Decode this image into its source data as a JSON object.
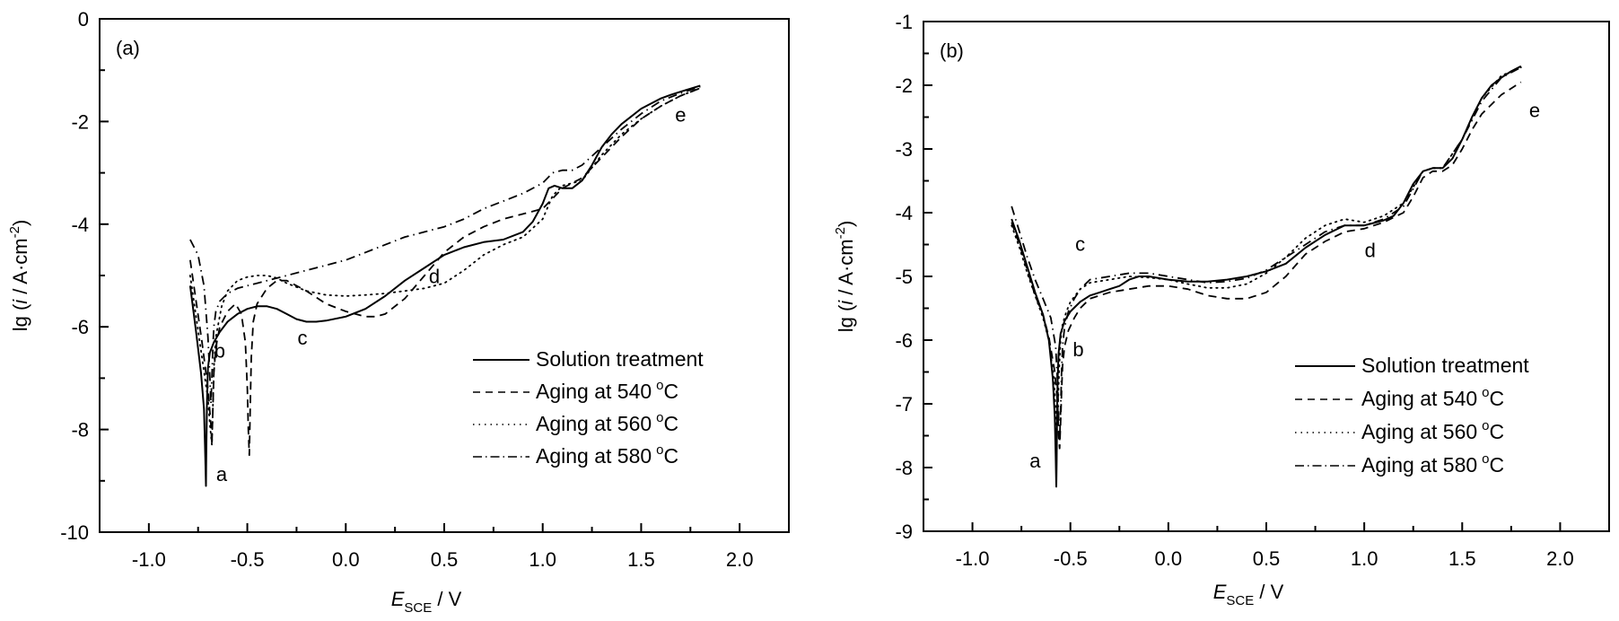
{
  "chart_data": [
    {
      "type": "line",
      "panel_label": "(a)",
      "xlabel": "E",
      "xlabel_sub": "SCE",
      "xlabel_unit": " / V",
      "ylabel": "lg (i / A·cm-2)",
      "ylabel_parts": {
        "pre": "lg (",
        "italic": "i",
        "mid": " / A·cm",
        "sup": "-2",
        "post": ")"
      },
      "xlim": [
        -1.25,
        2.25
      ],
      "ylim": [
        -10,
        0
      ],
      "xticks": [
        -1.0,
        -0.5,
        0.0,
        0.5,
        1.0,
        1.5,
        2.0
      ],
      "xtick_labels": [
        "-1.0",
        "-0.5",
        "0.0",
        "0.5",
        "1.0",
        "1.5",
        "2.0"
      ],
      "yticks": [
        0,
        -2,
        -4,
        -6,
        -8,
        -10
      ],
      "ytick_labels": [
        "0",
        "-2",
        "-4",
        "-6",
        "-8",
        "-10"
      ],
      "legend_position": "bottom-right",
      "grid": false,
      "annotations": [
        {
          "text": "a",
          "x": -0.63,
          "y": -9.0
        },
        {
          "text": "b",
          "x": -0.64,
          "y": -6.6
        },
        {
          "text": "c",
          "x": -0.22,
          "y": -6.35
        },
        {
          "text": "d",
          "x": 0.45,
          "y": -5.15
        },
        {
          "text": "e",
          "x": 1.7,
          "y": -2.0
        }
      ],
      "series": [
        {
          "name": "Solution treatment",
          "style": "solid",
          "x": [
            -0.79,
            -0.76,
            -0.735,
            -0.72,
            -0.715,
            -0.712,
            -0.71,
            -0.708,
            -0.705,
            -0.7,
            -0.69,
            -0.67,
            -0.64,
            -0.6,
            -0.55,
            -0.5,
            -0.45,
            -0.4,
            -0.35,
            -0.3,
            -0.25,
            -0.2,
            -0.15,
            -0.1,
            0.0,
            0.1,
            0.2,
            0.3,
            0.4,
            0.5,
            0.6,
            0.7,
            0.8,
            0.9,
            0.95,
            1.0,
            1.03,
            1.06,
            1.1,
            1.15,
            1.2,
            1.25,
            1.3,
            1.35,
            1.4,
            1.45,
            1.5,
            1.55,
            1.6,
            1.65,
            1.7,
            1.75,
            1.8
          ],
          "y": [
            -5.2,
            -6.1,
            -6.9,
            -7.6,
            -8.3,
            -8.8,
            -9.1,
            -8.4,
            -7.5,
            -6.8,
            -6.5,
            -6.3,
            -6.1,
            -5.9,
            -5.75,
            -5.65,
            -5.6,
            -5.6,
            -5.65,
            -5.75,
            -5.85,
            -5.9,
            -5.9,
            -5.88,
            -5.8,
            -5.65,
            -5.4,
            -5.1,
            -4.85,
            -4.6,
            -4.45,
            -4.35,
            -4.3,
            -4.15,
            -3.95,
            -3.6,
            -3.3,
            -3.25,
            -3.3,
            -3.3,
            -3.15,
            -2.85,
            -2.5,
            -2.25,
            -2.05,
            -1.9,
            -1.75,
            -1.65,
            -1.55,
            -1.48,
            -1.42,
            -1.36,
            -1.3
          ]
        },
        {
          "name": "Aging at 540 °C",
          "style": "dashed",
          "x": [
            -0.79,
            -0.76,
            -0.73,
            -0.7,
            -0.685,
            -0.68,
            -0.675,
            -0.67,
            -0.66,
            -0.64,
            -0.6,
            -0.56,
            -0.53,
            -0.51,
            -0.5,
            -0.495,
            -0.49,
            -0.485,
            -0.48,
            -0.47,
            -0.45,
            -0.4,
            -0.35,
            -0.3,
            -0.2,
            -0.1,
            0.0,
            0.1,
            0.15,
            0.2,
            0.3,
            0.4,
            0.5,
            0.6,
            0.7,
            0.8,
            0.9,
            1.0,
            1.05,
            1.1,
            1.15,
            1.2,
            1.3,
            1.4,
            1.5,
            1.6,
            1.7,
            1.8
          ],
          "y": [
            -4.7,
            -5.5,
            -6.3,
            -7.2,
            -7.9,
            -8.3,
            -7.6,
            -6.9,
            -6.4,
            -6.0,
            -5.7,
            -5.55,
            -5.75,
            -6.3,
            -7.2,
            -8.0,
            -8.5,
            -7.5,
            -6.6,
            -5.9,
            -5.55,
            -5.25,
            -5.1,
            -5.1,
            -5.3,
            -5.55,
            -5.7,
            -5.8,
            -5.8,
            -5.75,
            -5.45,
            -5.0,
            -4.55,
            -4.25,
            -4.05,
            -3.9,
            -3.8,
            -3.7,
            -3.5,
            -3.3,
            -3.2,
            -3.1,
            -2.7,
            -2.3,
            -1.95,
            -1.7,
            -1.5,
            -1.35
          ]
        },
        {
          "name": "Aging at 560 °C",
          "style": "dotted",
          "x": [
            -0.79,
            -0.76,
            -0.73,
            -0.7,
            -0.69,
            -0.68,
            -0.675,
            -0.67,
            -0.66,
            -0.63,
            -0.6,
            -0.55,
            -0.5,
            -0.45,
            -0.4,
            -0.35,
            -0.3,
            -0.2,
            -0.1,
            0.0,
            0.1,
            0.2,
            0.3,
            0.4,
            0.5,
            0.6,
            0.7,
            0.8,
            0.9,
            1.0,
            1.05,
            1.1,
            1.2,
            1.3,
            1.4,
            1.5,
            1.6,
            1.7,
            1.8
          ],
          "y": [
            -5.0,
            -5.8,
            -6.6,
            -7.4,
            -7.9,
            -8.3,
            -7.6,
            -6.8,
            -6.2,
            -5.6,
            -5.3,
            -5.1,
            -5.03,
            -5.0,
            -5.0,
            -5.05,
            -5.15,
            -5.3,
            -5.38,
            -5.4,
            -5.38,
            -5.35,
            -5.3,
            -5.25,
            -5.15,
            -4.9,
            -4.6,
            -4.4,
            -4.25,
            -3.9,
            -3.45,
            -3.25,
            -3.15,
            -2.65,
            -2.25,
            -1.95,
            -1.7,
            -1.5,
            -1.35
          ]
        },
        {
          "name": "Aging at 580 °C",
          "style": "dashdot",
          "x": [
            -0.79,
            -0.75,
            -0.72,
            -0.7,
            -0.69,
            -0.685,
            -0.68,
            -0.675,
            -0.67,
            -0.66,
            -0.64,
            -0.6,
            -0.55,
            -0.5,
            -0.45,
            -0.4,
            -0.3,
            -0.2,
            -0.1,
            0.0,
            0.1,
            0.2,
            0.3,
            0.4,
            0.5,
            0.6,
            0.7,
            0.8,
            0.9,
            1.0,
            1.05,
            1.1,
            1.15,
            1.2,
            1.3,
            1.4,
            1.5,
            1.6,
            1.7,
            1.8
          ],
          "y": [
            -4.3,
            -4.6,
            -5.2,
            -6.2,
            -7.0,
            -7.5,
            -7.0,
            -6.4,
            -6.0,
            -5.7,
            -5.5,
            -5.35,
            -5.25,
            -5.2,
            -5.15,
            -5.1,
            -5.0,
            -4.9,
            -4.8,
            -4.7,
            -4.55,
            -4.4,
            -4.25,
            -4.15,
            -4.05,
            -3.9,
            -3.7,
            -3.55,
            -3.4,
            -3.2,
            -3.0,
            -2.95,
            -2.95,
            -2.85,
            -2.5,
            -2.15,
            -1.85,
            -1.6,
            -1.45,
            -1.32
          ]
        }
      ]
    },
    {
      "type": "line",
      "panel_label": "(b)",
      "xlabel": "E",
      "xlabel_sub": "SCE",
      "xlabel_unit": " / V",
      "ylabel": "lg (i / A·cm-2)",
      "ylabel_parts": {
        "pre": "lg (",
        "italic": "i",
        "mid": " / A·cm",
        "sup": "-2",
        "post": ")"
      },
      "xlim": [
        -1.25,
        2.25
      ],
      "ylim": [
        -9,
        -1
      ],
      "xticks": [
        -1.0,
        -0.5,
        0.0,
        0.5,
        1.0,
        1.5,
        2.0
      ],
      "xtick_labels": [
        "-1.0",
        "-0.5",
        "0.0",
        "0.5",
        "1.0",
        "1.5",
        "2.0"
      ],
      "yticks": [
        -1,
        -2,
        -3,
        -4,
        -5,
        -6,
        -7,
        -8,
        -9
      ],
      "ytick_labels": [
        "-1",
        "-2",
        "-3",
        "-4",
        "-5",
        "-6",
        "-7",
        "-8",
        "-9"
      ],
      "legend_position": "bottom-right",
      "grid": false,
      "annotations": [
        {
          "text": "a",
          "x": -0.68,
          "y": -8.0
        },
        {
          "text": "b",
          "x": -0.46,
          "y": -6.25
        },
        {
          "text": "c",
          "x": -0.45,
          "y": -4.6
        },
        {
          "text": "d",
          "x": 1.03,
          "y": -4.7
        },
        {
          "text": "e",
          "x": 1.87,
          "y": -2.5
        }
      ],
      "series": [
        {
          "name": "Solution treatment",
          "style": "solid",
          "x": [
            -0.8,
            -0.76,
            -0.72,
            -0.68,
            -0.64,
            -0.61,
            -0.59,
            -0.58,
            -0.575,
            -0.572,
            -0.57,
            -0.568,
            -0.565,
            -0.56,
            -0.55,
            -0.53,
            -0.5,
            -0.45,
            -0.4,
            -0.35,
            -0.3,
            -0.25,
            -0.2,
            -0.15,
            -0.1,
            0.0,
            0.1,
            0.2,
            0.3,
            0.4,
            0.5,
            0.6,
            0.7,
            0.8,
            0.9,
            1.0,
            1.1,
            1.15,
            1.2,
            1.25,
            1.3,
            1.35,
            1.4,
            1.45,
            1.5,
            1.55,
            1.6,
            1.65,
            1.7,
            1.75,
            1.8
          ],
          "y": [
            -4.1,
            -4.45,
            -4.85,
            -5.25,
            -5.6,
            -6.0,
            -6.6,
            -7.2,
            -7.8,
            -8.3,
            -7.9,
            -7.1,
            -6.6,
            -6.2,
            -5.9,
            -5.7,
            -5.55,
            -5.4,
            -5.3,
            -5.25,
            -5.2,
            -5.15,
            -5.05,
            -5.0,
            -5.0,
            -5.05,
            -5.08,
            -5.08,
            -5.05,
            -5.0,
            -4.92,
            -4.8,
            -4.55,
            -4.35,
            -4.2,
            -4.2,
            -4.12,
            -4.05,
            -3.85,
            -3.55,
            -3.35,
            -3.3,
            -3.3,
            -3.15,
            -2.85,
            -2.5,
            -2.2,
            -2.0,
            -1.88,
            -1.78,
            -1.7
          ]
        },
        {
          "name": "Aging at 540 °C",
          "style": "dashed",
          "x": [
            -0.8,
            -0.76,
            -0.72,
            -0.68,
            -0.64,
            -0.61,
            -0.58,
            -0.565,
            -0.56,
            -0.555,
            -0.55,
            -0.545,
            -0.54,
            -0.53,
            -0.51,
            -0.48,
            -0.45,
            -0.4,
            -0.3,
            -0.2,
            -0.1,
            0.0,
            0.1,
            0.2,
            0.3,
            0.4,
            0.5,
            0.6,
            0.7,
            0.8,
            0.9,
            1.0,
            1.1,
            1.2,
            1.25,
            1.3,
            1.35,
            1.4,
            1.45,
            1.5,
            1.55,
            1.6,
            1.7,
            1.8
          ],
          "y": [
            -4.15,
            -4.5,
            -4.9,
            -5.3,
            -5.6,
            -5.95,
            -6.5,
            -7.0,
            -7.5,
            -7.7,
            -7.3,
            -6.8,
            -6.4,
            -6.1,
            -5.85,
            -5.65,
            -5.5,
            -5.35,
            -5.25,
            -5.2,
            -5.15,
            -5.15,
            -5.2,
            -5.3,
            -5.35,
            -5.35,
            -5.25,
            -5.0,
            -4.65,
            -4.45,
            -4.3,
            -4.25,
            -4.15,
            -4.0,
            -3.75,
            -3.45,
            -3.35,
            -3.35,
            -3.25,
            -3.0,
            -2.7,
            -2.45,
            -2.15,
            -1.95
          ]
        },
        {
          "name": "Aging at 560 °C",
          "style": "dotted",
          "x": [
            -0.8,
            -0.76,
            -0.72,
            -0.68,
            -0.64,
            -0.61,
            -0.585,
            -0.575,
            -0.57,
            -0.565,
            -0.56,
            -0.555,
            -0.55,
            -0.54,
            -0.52,
            -0.5,
            -0.45,
            -0.4,
            -0.3,
            -0.2,
            -0.1,
            0.0,
            0.1,
            0.2,
            0.3,
            0.4,
            0.5,
            0.6,
            0.7,
            0.8,
            0.9,
            1.0,
            1.1,
            1.2,
            1.3,
            1.35,
            1.4,
            1.5,
            1.6,
            1.7,
            1.8
          ],
          "y": [
            -4.2,
            -4.55,
            -4.95,
            -5.3,
            -5.65,
            -6.0,
            -6.6,
            -7.1,
            -7.5,
            -7.2,
            -6.7,
            -6.3,
            -6.0,
            -5.75,
            -5.55,
            -5.4,
            -5.2,
            -5.1,
            -5.05,
            -5.0,
            -5.02,
            -5.05,
            -5.12,
            -5.18,
            -5.18,
            -5.12,
            -4.95,
            -4.7,
            -4.4,
            -4.2,
            -4.1,
            -4.15,
            -4.05,
            -3.85,
            -3.35,
            -3.3,
            -3.3,
            -2.85,
            -2.2,
            -1.85,
            -1.72
          ]
        },
        {
          "name": "Aging at 580 °C",
          "style": "dashdot",
          "x": [
            -0.8,
            -0.76,
            -0.72,
            -0.68,
            -0.64,
            -0.6,
            -0.575,
            -0.565,
            -0.56,
            -0.555,
            -0.55,
            -0.545,
            -0.54,
            -0.53,
            -0.51,
            -0.48,
            -0.45,
            -0.4,
            -0.3,
            -0.2,
            -0.1,
            0.0,
            0.1,
            0.2,
            0.3,
            0.4,
            0.5,
            0.6,
            0.7,
            0.8,
            0.9,
            1.0,
            1.1,
            1.2,
            1.3,
            1.35,
            1.4,
            1.5,
            1.6,
            1.7,
            1.8
          ],
          "y": [
            -3.9,
            -4.3,
            -4.7,
            -5.05,
            -5.35,
            -5.65,
            -6.1,
            -6.7,
            -7.2,
            -7.6,
            -7.1,
            -6.5,
            -6.1,
            -5.8,
            -5.55,
            -5.35,
            -5.2,
            -5.05,
            -5.0,
            -4.95,
            -4.95,
            -5.0,
            -5.05,
            -5.1,
            -5.08,
            -5.03,
            -4.9,
            -4.7,
            -4.5,
            -4.3,
            -4.2,
            -4.2,
            -4.1,
            -3.9,
            -3.35,
            -3.3,
            -3.3,
            -2.85,
            -2.25,
            -1.88,
            -1.72
          ]
        }
      ]
    }
  ]
}
